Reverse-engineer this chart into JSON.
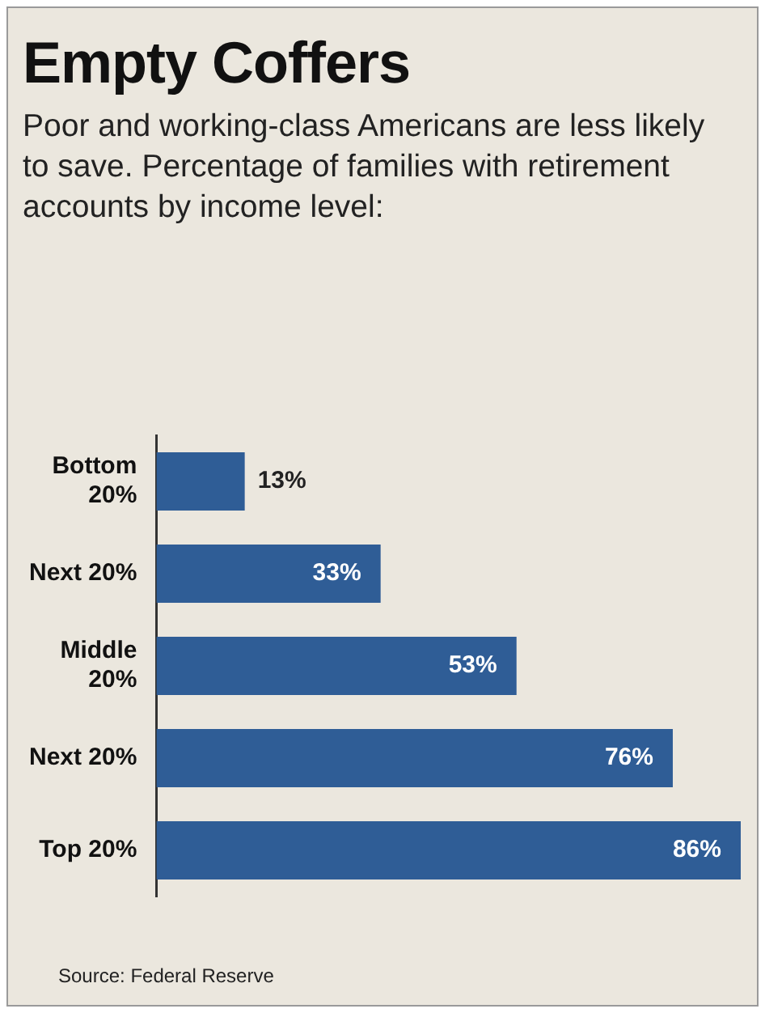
{
  "chart_data": {
    "type": "bar",
    "orientation": "horizontal",
    "title": "Empty Coffers",
    "subtitle": "Poor and working-class Americans are less likely to save. Percentage of families with retirement accounts by income level:",
    "categories": [
      "Bottom\n20%",
      "Next 20%",
      "Middle\n20%",
      "Next 20%",
      "Top 20%"
    ],
    "values": [
      13,
      33,
      53,
      76,
      86
    ],
    "color": "#2f5d96",
    "value_labels": [
      "13%",
      "33%",
      "53%",
      "76%",
      "86%"
    ],
    "annotations": [
      "Source: Federal Reserve"
    ],
    "grid": false,
    "legend": false
  }
}
